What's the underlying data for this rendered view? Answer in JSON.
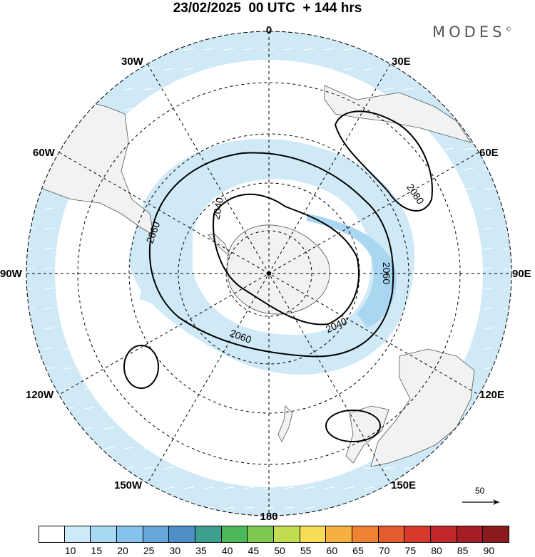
{
  "header": {
    "title": "23/02/2025  00 UTC  + 144 hrs",
    "brand": "MODES",
    "brand_mark": "©"
  },
  "map": {
    "projection": "south polar stereographic",
    "longitude_labels": {
      "top": "0",
      "bottom": "180",
      "left": "90W",
      "right": "90E",
      "upper_left_30": "30W",
      "upper_right_30": "30E",
      "upper_left_60": "60W",
      "upper_right_60": "60E",
      "lower_left_120": "120W",
      "lower_right_120": "120E",
      "lower_left_150": "150W",
      "lower_right_150": "150E"
    },
    "contour_labels": [
      "2040",
      "2060",
      "2080",
      "2060",
      "2040",
      "2060"
    ],
    "contour_color": "#000000",
    "land_color": "#f2f2f2",
    "ocean_color": "#ffffff",
    "shading_colors": [
      "#cfe9f7",
      "#a9d6f1"
    ]
  },
  "legend": {
    "vector_reference_label": "50",
    "colorbar_colors": [
      "#ffffff",
      "#cdeaf8",
      "#a8d8f2",
      "#86c3ec",
      "#67a8dc",
      "#4d8fc6",
      "#3fa090",
      "#4cb85a",
      "#7fc852",
      "#c3dd52",
      "#f5dd58",
      "#f5b040",
      "#ee8233",
      "#e45c2d",
      "#d73a2c",
      "#c0262a",
      "#a51d24",
      "#8b1a1d"
    ],
    "tick_labels": [
      "10",
      "15",
      "20",
      "25",
      "30",
      "35",
      "40",
      "45",
      "50",
      "55",
      "60",
      "65",
      "70",
      "75",
      "80",
      "85",
      "90"
    ]
  }
}
